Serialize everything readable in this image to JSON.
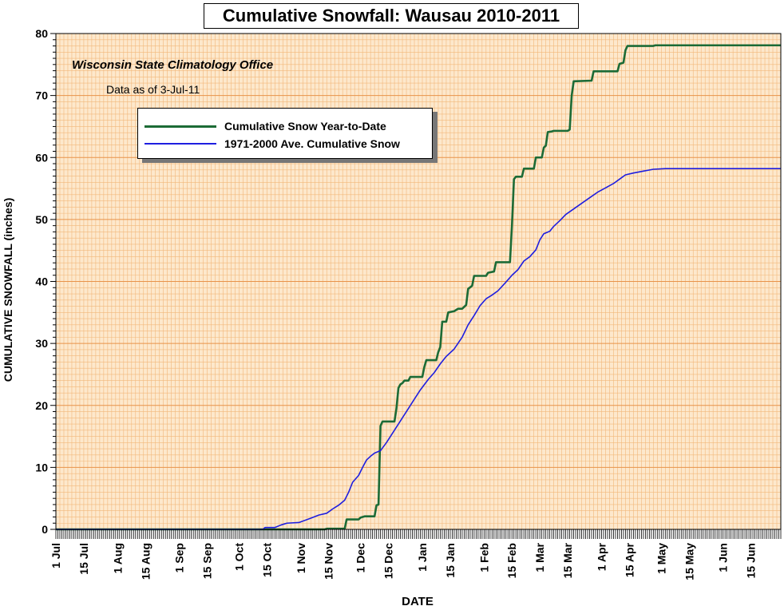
{
  "chart_data": {
    "type": "line",
    "title": "Cumulative Snowfall: Wausau 2010-2011",
    "credit": "Wisconsin State Climatology Office",
    "data_as_of": "Data as of 3-Jul-11",
    "xlabel": "DATE",
    "ylabel": "CUMULATIVE SNOWFALL (inches)",
    "ylim": [
      0,
      80
    ],
    "yticks": [
      0,
      10,
      20,
      30,
      40,
      50,
      60,
      70,
      80
    ],
    "xlim": [
      0,
      364
    ],
    "xticks": [
      {
        "day": 0,
        "label": "1 Jul"
      },
      {
        "day": 14,
        "label": "15 Jul"
      },
      {
        "day": 31,
        "label": "1 Aug"
      },
      {
        "day": 45,
        "label": "15 Aug"
      },
      {
        "day": 62,
        "label": "1 Sep"
      },
      {
        "day": 76,
        "label": "15 Sep"
      },
      {
        "day": 92,
        "label": "1 Oct"
      },
      {
        "day": 106,
        "label": "15 Oct"
      },
      {
        "day": 123,
        "label": "1 Nov"
      },
      {
        "day": 137,
        "label": "15 Nov"
      },
      {
        "day": 153,
        "label": "1 Dec"
      },
      {
        "day": 167,
        "label": "15 Dec"
      },
      {
        "day": 184,
        "label": "1 Jan"
      },
      {
        "day": 198,
        "label": "15 Jan"
      },
      {
        "day": 215,
        "label": "1 Feb"
      },
      {
        "day": 229,
        "label": "15 Feb"
      },
      {
        "day": 243,
        "label": "1 Mar"
      },
      {
        "day": 257,
        "label": "15 Mar"
      },
      {
        "day": 274,
        "label": "1 Apr"
      },
      {
        "day": 288,
        "label": "15 Apr"
      },
      {
        "day": 304,
        "label": "1 May"
      },
      {
        "day": 318,
        "label": "15 May"
      },
      {
        "day": 335,
        "label": "1 Jun"
      },
      {
        "day": 349,
        "label": "15 Jun"
      }
    ],
    "grid": true,
    "legend_position": "top-left",
    "colors": {
      "plot_bg": "#fde8cc",
      "grid_major": "#e8934a",
      "grid_minor": "#f2b77a",
      "series_2010_2011": "#1c6b36",
      "series_normal": "#1e1ee0"
    },
    "series": [
      {
        "name": "Cumulative Snow Year-to-Date",
        "color": "#1c6b36",
        "step": true,
        "points": [
          [
            0,
            0
          ],
          [
            135,
            0
          ],
          [
            136,
            0.1
          ],
          [
            145,
            0.1
          ],
          [
            146,
            1.6
          ],
          [
            152,
            1.6
          ],
          [
            153,
            1.9
          ],
          [
            155,
            2.1
          ],
          [
            160,
            2.1
          ],
          [
            161,
            3.9
          ],
          [
            162,
            4.0
          ],
          [
            163,
            16.7
          ],
          [
            164,
            17.4
          ],
          [
            170,
            17.4
          ],
          [
            171,
            19.5
          ],
          [
            172,
            22.8
          ],
          [
            173,
            23.4
          ],
          [
            174,
            23.6
          ],
          [
            175,
            24.0
          ],
          [
            177,
            24.0
          ],
          [
            178,
            24.6
          ],
          [
            184,
            24.6
          ],
          [
            185,
            26.2
          ],
          [
            186,
            27.3
          ],
          [
            191,
            27.3
          ],
          [
            192,
            28.6
          ],
          [
            193,
            29.4
          ],
          [
            194,
            33.5
          ],
          [
            196,
            33.5
          ],
          [
            197,
            35.0
          ],
          [
            200,
            35.2
          ],
          [
            202,
            35.6
          ],
          [
            204,
            35.6
          ],
          [
            206,
            36.2
          ],
          [
            207,
            38.8
          ],
          [
            209,
            39.3
          ],
          [
            210,
            40.9
          ],
          [
            216,
            40.9
          ],
          [
            217,
            41.4
          ],
          [
            220,
            41.6
          ],
          [
            221,
            43.1
          ],
          [
            228,
            43.1
          ],
          [
            229,
            49.0
          ],
          [
            230,
            56.5
          ],
          [
            231,
            56.9
          ],
          [
            234,
            56.9
          ],
          [
            235,
            58.2
          ],
          [
            240,
            58.2
          ],
          [
            241,
            60.0
          ],
          [
            244,
            60.0
          ],
          [
            245,
            61.6
          ],
          [
            246,
            61.9
          ],
          [
            247,
            64.1
          ],
          [
            249,
            64.2
          ],
          [
            250,
            64.3
          ],
          [
            257,
            64.3
          ],
          [
            258,
            64.5
          ],
          [
            259,
            70.0
          ],
          [
            260,
            72.3
          ],
          [
            269,
            72.4
          ],
          [
            270,
            73.9
          ],
          [
            282,
            73.9
          ],
          [
            283,
            75.1
          ],
          [
            285,
            75.3
          ],
          [
            286,
            77.3
          ],
          [
            287,
            78.0
          ],
          [
            300,
            78.0
          ],
          [
            301,
            78.1
          ],
          [
            364,
            78.1
          ]
        ]
      },
      {
        "name": "1971-2000 Ave. Cumulative Snow",
        "color": "#1e1ee0",
        "step": false,
        "points": [
          [
            0,
            0
          ],
          [
            104,
            0
          ],
          [
            105,
            0.3
          ],
          [
            110,
            0.3
          ],
          [
            113,
            0.7
          ],
          [
            116,
            1.0
          ],
          [
            122,
            1.1
          ],
          [
            128,
            1.8
          ],
          [
            132,
            2.3
          ],
          [
            136,
            2.6
          ],
          [
            139,
            3.3
          ],
          [
            142,
            3.9
          ],
          [
            145,
            4.7
          ],
          [
            147,
            6.0
          ],
          [
            149,
            7.6
          ],
          [
            152,
            8.7
          ],
          [
            154,
            10.0
          ],
          [
            156,
            11.2
          ],
          [
            158,
            11.8
          ],
          [
            160,
            12.3
          ],
          [
            163,
            12.7
          ],
          [
            166,
            14.0
          ],
          [
            170,
            16.0
          ],
          [
            173,
            17.5
          ],
          [
            176,
            19.0
          ],
          [
            179,
            20.5
          ],
          [
            183,
            22.5
          ],
          [
            187,
            24.2
          ],
          [
            190,
            25.3
          ],
          [
            193,
            26.7
          ],
          [
            196,
            27.9
          ],
          [
            200,
            29.1
          ],
          [
            204,
            31.0
          ],
          [
            207,
            33.0
          ],
          [
            210,
            34.5
          ],
          [
            213,
            36.1
          ],
          [
            216,
            37.2
          ],
          [
            219,
            37.8
          ],
          [
            222,
            38.5
          ],
          [
            226,
            39.9
          ],
          [
            229,
            41.0
          ],
          [
            232,
            41.9
          ],
          [
            235,
            43.3
          ],
          [
            238,
            44.0
          ],
          [
            241,
            45.1
          ],
          [
            243,
            46.7
          ],
          [
            245,
            47.7
          ],
          [
            248,
            48.1
          ],
          [
            250,
            48.9
          ],
          [
            253,
            49.8
          ],
          [
            256,
            50.8
          ],
          [
            260,
            51.7
          ],
          [
            264,
            52.6
          ],
          [
            268,
            53.5
          ],
          [
            272,
            54.4
          ],
          [
            276,
            55.1
          ],
          [
            280,
            55.8
          ],
          [
            283,
            56.5
          ],
          [
            286,
            57.2
          ],
          [
            290,
            57.5
          ],
          [
            295,
            57.8
          ],
          [
            300,
            58.1
          ],
          [
            306,
            58.2
          ],
          [
            364,
            58.2
          ]
        ]
      }
    ]
  }
}
